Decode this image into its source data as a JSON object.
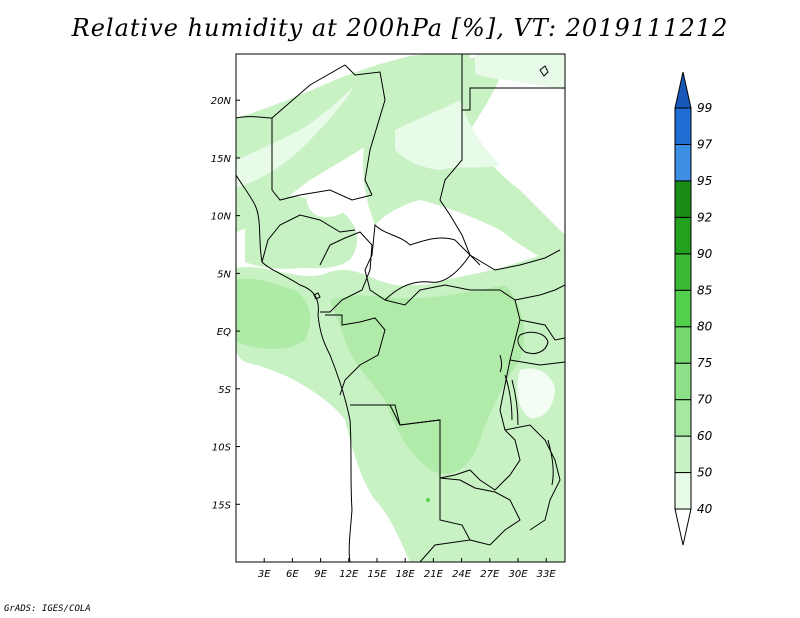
{
  "title": "Relative humidity at 200hPa [%], VT: 2019111212",
  "footer": "GrADS: IGES/COLA",
  "map": {
    "lat_range": [
      -20,
      24
    ],
    "lon_range": [
      0,
      35
    ],
    "lat_ticks": [
      {
        "lat": 20,
        "label": "20N"
      },
      {
        "lat": 15,
        "label": "15N"
      },
      {
        "lat": 10,
        "label": "10N"
      },
      {
        "lat": 5,
        "label": "5N"
      },
      {
        "lat": 0,
        "label": "EQ"
      },
      {
        "lat": -5,
        "label": "5S"
      },
      {
        "lat": -10,
        "label": "10S"
      },
      {
        "lat": -15,
        "label": "15S"
      }
    ],
    "lon_ticks": [
      {
        "lon": 3,
        "label": "3E"
      },
      {
        "lon": 6,
        "label": "6E"
      },
      {
        "lon": 9,
        "label": "9E"
      },
      {
        "lon": 12,
        "label": "12E"
      },
      {
        "lon": 15,
        "label": "15E"
      },
      {
        "lon": 18,
        "label": "18E"
      },
      {
        "lon": 21,
        "label": "21E"
      },
      {
        "lon": 24,
        "label": "24E"
      },
      {
        "lon": 27,
        "label": "27E"
      },
      {
        "lon": 30,
        "label": "30E"
      },
      {
        "lon": 33,
        "label": "33E"
      }
    ]
  },
  "colorbar": {
    "labels": [
      "99",
      "97",
      "95",
      "92",
      "90",
      "85",
      "80",
      "75",
      "70",
      "60",
      "50",
      "40"
    ],
    "bins": [
      {
        "color": "#ffffff"
      },
      {
        "color": "#e8fae8"
      },
      {
        "color": "#c8f2c4"
      },
      {
        "color": "#a6e8a0"
      },
      {
        "color": "#8ee188"
      },
      {
        "color": "#74d86e"
      },
      {
        "color": "#52cf4c"
      },
      {
        "color": "#3ab836"
      },
      {
        "color": "#24a01f"
      },
      {
        "color": "#188c14"
      },
      {
        "color": "#3d8fe6"
      },
      {
        "color": "#1f6ed3"
      },
      {
        "color": "#1858b8"
      }
    ]
  }
}
